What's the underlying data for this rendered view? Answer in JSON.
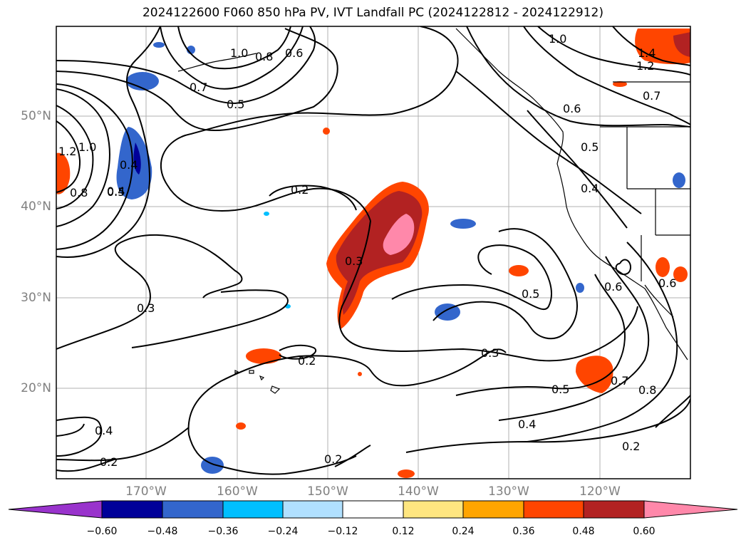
{
  "title": "2024122600 F060 850 hPa PV, IVT Landfall PC (2024122812 - 2024122912)",
  "axes": {
    "lat_labels": [
      "50°N",
      "40°N",
      "30°N",
      "20°N"
    ],
    "lon_labels": [
      "170°W",
      "160°W",
      "150°W",
      "140°W",
      "130°W",
      "120°W"
    ]
  },
  "colorbar": {
    "ticks": [
      "−0.60",
      "−0.48",
      "−0.36",
      "−0.24",
      "−0.12",
      "0.12",
      "0.24",
      "0.36",
      "0.48",
      "0.60"
    ],
    "colors": [
      "#9933cc",
      "#000099",
      "#3366cc",
      "#00bfff",
      "#b0e0ff",
      "#ffffff",
      "#ffe680",
      "#ffa500",
      "#ff4500",
      "#b22222",
      "#ff88aa"
    ]
  },
  "contour_labels": [
    "1.0",
    "0.8",
    "0.6",
    "0.7",
    "0.5",
    "1.0",
    "1.4",
    "1.2",
    "0.7",
    "0.6",
    "0.5",
    "0.4",
    "0.6",
    "0.6",
    "0.2",
    "0.3",
    "0.5",
    "0.3",
    "0.2",
    "0.2",
    "0.4",
    "0.5",
    "0.7",
    "0.8",
    "0.2",
    "0.2",
    "0.3",
    "0.4",
    "0.8",
    "1.2",
    "1.0",
    "0.4",
    "0.5",
    "0.4"
  ]
}
